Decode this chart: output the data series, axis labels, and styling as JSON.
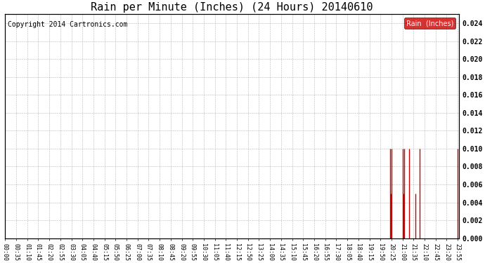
{
  "title": "Rain per Minute (Inches) (24 Hours) 20140610",
  "copyright": "Copyright 2014 Cartronics.com",
  "legend_label": "Rain  (Inches)",
  "legend_bg": "#cc0000",
  "legend_text_color": "#ffffff",
  "line_color": "#cc0000",
  "background_color": "#ffffff",
  "grid_color": "#999999",
  "ylim": [
    0,
    0.025
  ],
  "yticks": [
    0.0,
    0.002,
    0.004,
    0.006,
    0.008,
    0.01,
    0.012,
    0.014,
    0.016,
    0.018,
    0.02,
    0.022,
    0.024
  ],
  "total_minutes": 1440,
  "rain_spikes": [
    {
      "minute": 1220,
      "value": 0.01
    },
    {
      "minute": 1222,
      "value": 0.005
    },
    {
      "minute": 1224,
      "value": 0.01
    },
    {
      "minute": 1261,
      "value": 0.01
    },
    {
      "minute": 1263,
      "value": 0.005
    },
    {
      "minute": 1265,
      "value": 0.01
    },
    {
      "minute": 1280,
      "value": 0.01
    },
    {
      "minute": 1300,
      "value": 0.005
    },
    {
      "minute": 1315,
      "value": 0.01
    },
    {
      "minute": 1435,
      "value": 0.01
    }
  ],
  "xtick_interval_minutes": 35,
  "title_fontsize": 11,
  "copyright_fontsize": 7,
  "tick_fontsize": 6,
  "ytick_fontsize": 7
}
